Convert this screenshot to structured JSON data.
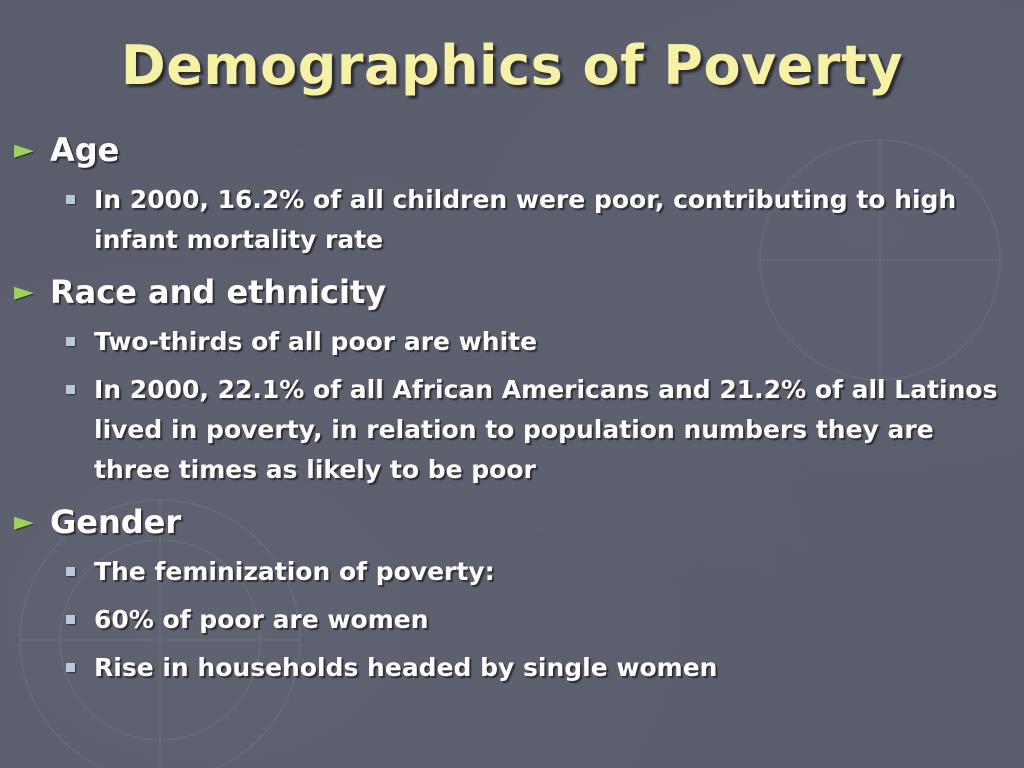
{
  "slide": {
    "title": "Demographics of Poverty",
    "colors": {
      "background": "#5a5d6c",
      "title": "#f7f1a6",
      "text": "#ffffff",
      "arrow_bullet": "#9dd35c",
      "square_bullet": "#b7c9dc"
    },
    "icons": {
      "level1_bullet": "arrow-right-icon",
      "level2_bullet": "square-bullet-icon"
    },
    "sections": [
      {
        "heading": "Age",
        "items": [
          "In 2000, 16.2% of all children were poor, contributing to high infant mortality rate"
        ]
      },
      {
        "heading": "Race and ethnicity",
        "items": [
          "Two-thirds of all poor are white",
          "In 2000, 22.1% of all African Americans and 21.2% of all Latinos lived in poverty, in relation to population numbers they are three times as likely to be poor"
        ]
      },
      {
        "heading": "Gender",
        "items": [
          "The feminization of poverty:",
          "60% of poor are women",
          "Rise in households headed by single women"
        ]
      }
    ]
  }
}
